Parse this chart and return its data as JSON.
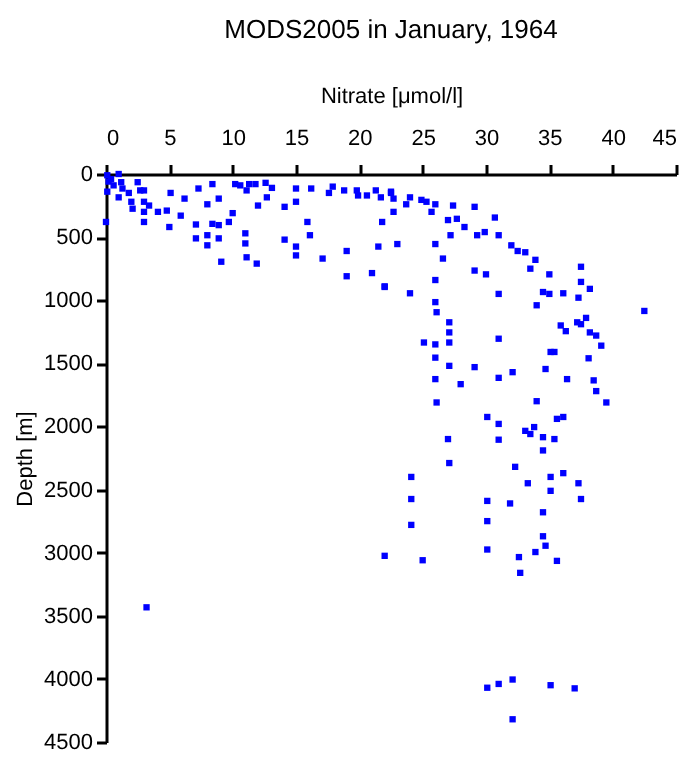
{
  "chart_data": {
    "type": "scatter",
    "title": "MODS2005 in January, 1964",
    "xlabel": "Nitrate [μmol/l]",
    "ylabel": "Depth [m]",
    "color": "#0000ff",
    "marker": "square",
    "grid": false,
    "xlim": [
      0,
      45
    ],
    "xticks": [
      0,
      5,
      10,
      15,
      20,
      25,
      30,
      35,
      40,
      45
    ],
    "ylim": [
      4500,
      0
    ],
    "yticks": [
      0,
      500,
      1000,
      1500,
      2000,
      2500,
      3000,
      3500,
      4000,
      4500
    ],
    "x": [
      0.1,
      0.2,
      0.1,
      0.4,
      0.6,
      1.0,
      1.2,
      1.3,
      1.0,
      1.8,
      2.0,
      2.1,
      2.5,
      2.7,
      3.0,
      3.0,
      3.0,
      3.0,
      3.4,
      4.1,
      4.8,
      5.1,
      5.0,
      5.9,
      6.2,
      7.1,
      7.3,
      7.1,
      8.0,
      8.0,
      8.0,
      8.4,
      8.4,
      8.9,
      8.9,
      8.9,
      9.1,
      9.7,
      10.0,
      10.2,
      10.6,
      11.1,
      11.0,
      11.0,
      11.1,
      11.3,
      11.8,
      12.0,
      11.9,
      12.6,
      12.7,
      13.1,
      14.1,
      14.1,
      15.0,
      15.0,
      15.0,
      15.0,
      15.9,
      16.1,
      16.2,
      17.1,
      17.6,
      17.9,
      18.8,
      19.0,
      19.0,
      19.8,
      19.9,
      20.6,
      21.0,
      21.3,
      21.5,
      21.7,
      21.8,
      22.0,
      22.5,
      22.7,
      22.5,
      22.7,
      23.0,
      22.0,
      24.0,
      24.0,
      23.7,
      24.9,
      25.3,
      25.7,
      26.0,
      26.0,
      26.0,
      26.0,
      26.1,
      26.6,
      27.0,
      27.2,
      27.4,
      27.7,
      27.1,
      27.1,
      27.1,
      25.1,
      26.0,
      26.0,
      27.1,
      26.0,
      28.0,
      28.3,
      29.1,
      29.1,
      29.3,
      29.9,
      30.0,
      30.7,
      31.0,
      31.0,
      31.0,
      31.0,
      29.1,
      32.0,
      32.1,
      32.5,
      33.1,
      33.5,
      33.9,
      34.5,
      34.0,
      35.0,
      35.0,
      34.7,
      35.1,
      35.4,
      35.9,
      36.3,
      36.4,
      36.1,
      37.3,
      37.2,
      37.5,
      37.5,
      37.5,
      37.9,
      38.2,
      38.1,
      38.2,
      38.7,
      39.1,
      38.5,
      42.5,
      38.7,
      39.5,
      26.1,
      34.0,
      30.1,
      31.0,
      35.6,
      36.1,
      33.8,
      33.1,
      33.5,
      34.5,
      35.4,
      27.0,
      31.0,
      34.5,
      27.1,
      32.3,
      24.1,
      35.1,
      36.1,
      33.3,
      37.3,
      35.1,
      24.1,
      30.1,
      31.9,
      37.5,
      34.5,
      30.1,
      24.1,
      34.5,
      30.1,
      34.7,
      33.9,
      32.6,
      22.0,
      25.0,
      35.6,
      32.7,
      30.1,
      31.0,
      32.1,
      35.1,
      37.0,
      32.1,
      3.2,
      0.0
    ],
    "values": [
      10,
      60,
      140,
      40,
      90,
      0,
      65,
      115,
      185,
      150,
      220,
      275,
      65,
      130,
      130,
      220,
      300,
      380,
      250,
      300,
      290,
      150,
      420,
      330,
      195,
      400,
      115,
      510,
      240,
      485,
      565,
      80,
      395,
      195,
      405,
      510,
      695,
      380,
      310,
      80,
      90,
      130,
      470,
      550,
      660,
      80,
      80,
      250,
      710,
      70,
      185,
      110,
      260,
      520,
      115,
      220,
      575,
      645,
      380,
      485,
      115,
      670,
      150,
      100,
      130,
      610,
      810,
      130,
      170,
      170,
      785,
      130,
      575,
      185,
      380,
      890,
      140,
      300,
      150,
      195,
      555,
      895,
      185,
      945,
      240,
      205,
      220,
      300,
      240,
      555,
      840,
      1015,
      1095,
      670,
      365,
      485,
      250,
      355,
      1175,
      1255,
      1335,
      1335,
      1350,
      1455,
      1520,
      1625,
      1665,
      420,
      260,
      765,
      485,
      460,
      795,
      345,
      485,
      950,
      1305,
      1615,
      1530,
      565,
      1570,
      610,
      620,
      750,
      680,
      935,
      1040,
      795,
      950,
      1545,
      1410,
      1410,
      1200,
      1245,
      1625,
      945,
      980,
      1175,
      735,
      855,
      1190,
      1140,
      910,
      1460,
      1255,
      1280,
      1360,
      1635,
      1085,
      1720,
      1810,
      1810,
      1800,
      1925,
      1980,
      1940,
      1925,
      2005,
      2035,
      2060,
      2085,
      2100,
      2100,
      2105,
      2190,
      2290,
      2320,
      2400,
      2400,
      2370,
      2450,
      2450,
      2510,
      2575,
      2590,
      2610,
      2575,
      2680,
      2750,
      2780,
      2870,
      2975,
      2945,
      2995,
      3035,
      3025,
      3060,
      3065,
      3160,
      4070,
      4040,
      4005,
      4050,
      4075,
      4320,
      3433,
      380
    ]
  }
}
